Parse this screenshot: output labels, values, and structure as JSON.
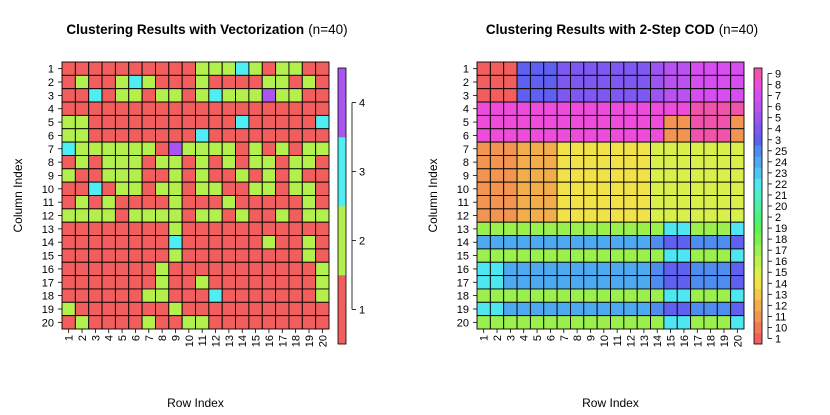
{
  "chart_data": [
    {
      "type": "heatmap",
      "title": "Clustering Results with Vectorization",
      "subtitle": "(n=40)",
      "xlabel": "Row Index",
      "ylabel": "Column Index",
      "x_ticks": [
        "1",
        "2",
        "3",
        "4",
        "5",
        "6",
        "7",
        "8",
        "9",
        "10",
        "11",
        "12",
        "13",
        "14",
        "15",
        "16",
        "17",
        "18",
        "19",
        "20"
      ],
      "y_ticks": [
        "1",
        "2",
        "3",
        "4",
        "5",
        "6",
        "7",
        "8",
        "9",
        "10",
        "11",
        "12",
        "13",
        "14",
        "15",
        "16",
        "17",
        "18",
        "19",
        "20"
      ],
      "legend": {
        "labels": [
          "1",
          "2",
          "3",
          "4"
        ],
        "colors": [
          "#F25D5D",
          "#B3F04E",
          "#4EEEF2",
          "#A855F2"
        ]
      },
      "grid": [
        [
          1,
          1,
          1,
          1,
          1,
          1,
          1,
          1,
          1,
          1,
          2,
          2,
          2,
          3,
          2,
          1,
          2,
          2,
          1,
          1
        ],
        [
          1,
          2,
          1,
          1,
          2,
          3,
          2,
          1,
          1,
          1,
          2,
          1,
          1,
          1,
          1,
          2,
          2,
          1,
          2,
          1
        ],
        [
          1,
          1,
          3,
          1,
          2,
          2,
          1,
          2,
          2,
          1,
          2,
          3,
          2,
          2,
          2,
          4,
          2,
          2,
          1,
          1
        ],
        [
          1,
          1,
          1,
          1,
          1,
          1,
          1,
          1,
          1,
          1,
          1,
          1,
          1,
          1,
          1,
          1,
          1,
          1,
          1,
          1
        ],
        [
          2,
          2,
          1,
          1,
          1,
          1,
          1,
          1,
          1,
          1,
          1,
          1,
          1,
          3,
          1,
          1,
          1,
          1,
          1,
          3
        ],
        [
          2,
          2,
          1,
          1,
          1,
          1,
          1,
          1,
          1,
          1,
          3,
          1,
          1,
          1,
          1,
          1,
          1,
          1,
          1,
          1
        ],
        [
          3,
          2,
          2,
          2,
          2,
          2,
          2,
          1,
          4,
          2,
          2,
          2,
          2,
          1,
          2,
          1,
          2,
          1,
          2,
          2
        ],
        [
          1,
          2,
          1,
          2,
          2,
          2,
          1,
          2,
          2,
          1,
          2,
          1,
          2,
          1,
          2,
          2,
          1,
          2,
          2,
          1
        ],
        [
          2,
          1,
          1,
          2,
          2,
          2,
          1,
          1,
          2,
          1,
          2,
          1,
          1,
          2,
          1,
          2,
          1,
          2,
          1,
          1
        ],
        [
          1,
          1,
          3,
          1,
          2,
          2,
          1,
          2,
          2,
          1,
          2,
          2,
          1,
          1,
          2,
          2,
          1,
          2,
          2,
          1
        ],
        [
          1,
          2,
          1,
          2,
          1,
          1,
          1,
          1,
          2,
          1,
          1,
          1,
          2,
          1,
          1,
          1,
          1,
          1,
          2,
          1
        ],
        [
          2,
          2,
          2,
          2,
          1,
          2,
          2,
          2,
          2,
          1,
          2,
          2,
          1,
          2,
          1,
          1,
          2,
          1,
          2,
          2
        ],
        [
          1,
          1,
          1,
          1,
          1,
          1,
          1,
          1,
          2,
          1,
          1,
          1,
          1,
          1,
          1,
          1,
          1,
          1,
          1,
          1
        ],
        [
          1,
          1,
          1,
          1,
          1,
          1,
          1,
          1,
          3,
          1,
          1,
          1,
          1,
          1,
          1,
          2,
          1,
          1,
          2,
          1
        ],
        [
          1,
          1,
          1,
          1,
          1,
          1,
          1,
          1,
          2,
          1,
          1,
          1,
          1,
          1,
          1,
          1,
          1,
          1,
          2,
          1
        ],
        [
          1,
          1,
          1,
          1,
          1,
          1,
          1,
          2,
          1,
          1,
          1,
          1,
          1,
          1,
          1,
          1,
          1,
          1,
          1,
          2
        ],
        [
          1,
          1,
          1,
          1,
          1,
          1,
          1,
          2,
          1,
          1,
          2,
          1,
          1,
          1,
          1,
          1,
          1,
          1,
          1,
          2
        ],
        [
          1,
          1,
          1,
          1,
          1,
          1,
          2,
          2,
          1,
          1,
          1,
          3,
          1,
          1,
          1,
          1,
          1,
          1,
          1,
          2
        ],
        [
          2,
          1,
          1,
          1,
          1,
          1,
          1,
          1,
          2,
          1,
          1,
          1,
          1,
          1,
          1,
          1,
          1,
          1,
          1,
          1
        ],
        [
          1,
          2,
          1,
          1,
          1,
          1,
          2,
          1,
          1,
          2,
          2,
          1,
          1,
          1,
          1,
          1,
          1,
          1,
          1,
          1
        ]
      ]
    },
    {
      "type": "heatmap",
      "title": "Clustering Results with 2-Step COD",
      "subtitle": "(n=40)",
      "xlabel": "Row Index",
      "ylabel": "Column Index",
      "x_ticks": [
        "1",
        "2",
        "3",
        "4",
        "5",
        "6",
        "7",
        "8",
        "9",
        "10",
        "11",
        "12",
        "13",
        "14",
        "15",
        "16",
        "17",
        "18",
        "19",
        "20"
      ],
      "y_ticks": [
        "1",
        "2",
        "3",
        "4",
        "5",
        "6",
        "7",
        "8",
        "9",
        "10",
        "11",
        "12",
        "13",
        "14",
        "15",
        "16",
        "17",
        "18",
        "19",
        "20"
      ],
      "legend": {
        "labels": [
          "1",
          "10",
          "11",
          "12",
          "13",
          "14",
          "15",
          "16",
          "17",
          "18",
          "19",
          "2",
          "20",
          "21",
          "22",
          "23",
          "24",
          "25",
          "3",
          "4",
          "5",
          "6",
          "7",
          "8",
          "9"
        ],
        "colors": [
          "#F25D5D",
          "#F27A58",
          "#F29452",
          "#F2AE4C",
          "#F2C846",
          "#F2E24A",
          "#D9F04C",
          "#BDF04E",
          "#9CF04E",
          "#7AF04E",
          "#5EF05A",
          "#4EF07C",
          "#4EF0A0",
          "#4EF0C6",
          "#4EE6F0",
          "#4EC8F0",
          "#4EAAF0",
          "#4E8CF0",
          "#6060F0",
          "#7E58F0",
          "#9C55F0",
          "#BA52F0",
          "#D64EEF",
          "#EE4CDB",
          "#F053AA"
        ]
      },
      "grid": [
        [
          1,
          1,
          1,
          19,
          19,
          19,
          20,
          20,
          20,
          20,
          20,
          20,
          20,
          21,
          22,
          22,
          23,
          23,
          23,
          23
        ],
        [
          1,
          1,
          1,
          19,
          19,
          19,
          20,
          20,
          20,
          20,
          20,
          20,
          20,
          21,
          22,
          22,
          23,
          23,
          23,
          23
        ],
        [
          1,
          1,
          1,
          19,
          19,
          19,
          20,
          20,
          20,
          20,
          20,
          20,
          20,
          21,
          22,
          22,
          23,
          23,
          23,
          23
        ],
        [
          24,
          24,
          24,
          24,
          24,
          24,
          24,
          24,
          24,
          24,
          24,
          24,
          24,
          24,
          24,
          24,
          25,
          25,
          25,
          25
        ],
        [
          24,
          24,
          24,
          24,
          24,
          24,
          24,
          24,
          24,
          24,
          24,
          24,
          24,
          24,
          3,
          3,
          25,
          25,
          25,
          3
        ],
        [
          24,
          24,
          24,
          24,
          24,
          24,
          24,
          24,
          24,
          24,
          24,
          24,
          24,
          24,
          3,
          3,
          25,
          25,
          25,
          3
        ],
        [
          3,
          3,
          3,
          4,
          4,
          4,
          6,
          6,
          6,
          6,
          6,
          6,
          6,
          7,
          7,
          7,
          7,
          7,
          7,
          7
        ],
        [
          3,
          3,
          3,
          4,
          4,
          4,
          6,
          6,
          6,
          6,
          6,
          6,
          6,
          7,
          7,
          7,
          7,
          7,
          7,
          7
        ],
        [
          3,
          3,
          3,
          4,
          4,
          4,
          6,
          6,
          6,
          6,
          6,
          6,
          6,
          7,
          7,
          7,
          7,
          7,
          7,
          7
        ],
        [
          3,
          3,
          3,
          4,
          4,
          4,
          6,
          6,
          6,
          6,
          6,
          6,
          6,
          7,
          7,
          7,
          7,
          7,
          7,
          7
        ],
        [
          3,
          3,
          3,
          4,
          4,
          4,
          6,
          6,
          6,
          6,
          6,
          6,
          6,
          7,
          7,
          7,
          7,
          7,
          7,
          7
        ],
        [
          3,
          3,
          3,
          4,
          4,
          4,
          6,
          6,
          6,
          6,
          6,
          6,
          6,
          7,
          7,
          7,
          7,
          7,
          7,
          7
        ],
        [
          9,
          9,
          9,
          9,
          9,
          9,
          9,
          9,
          9,
          9,
          9,
          9,
          9,
          9,
          15,
          15,
          9,
          9,
          9,
          15
        ],
        [
          17,
          17,
          17,
          17,
          17,
          17,
          17,
          17,
          17,
          17,
          17,
          17,
          17,
          18,
          19,
          19,
          18,
          18,
          18,
          19
        ],
        [
          9,
          9,
          9,
          9,
          9,
          9,
          9,
          9,
          9,
          9,
          9,
          9,
          9,
          9,
          15,
          15,
          9,
          9,
          9,
          15
        ],
        [
          15,
          15,
          17,
          17,
          17,
          17,
          17,
          17,
          17,
          17,
          17,
          17,
          17,
          18,
          19,
          19,
          18,
          18,
          18,
          19
        ],
        [
          15,
          15,
          17,
          17,
          17,
          17,
          17,
          17,
          17,
          17,
          17,
          17,
          17,
          18,
          19,
          19,
          18,
          18,
          18,
          19
        ],
        [
          9,
          9,
          9,
          9,
          9,
          9,
          9,
          9,
          9,
          9,
          9,
          9,
          9,
          9,
          15,
          15,
          9,
          9,
          9,
          15
        ],
        [
          15,
          15,
          17,
          17,
          17,
          17,
          17,
          17,
          17,
          17,
          17,
          17,
          17,
          18,
          19,
          19,
          18,
          18,
          18,
          19
        ],
        [
          9,
          9,
          9,
          9,
          9,
          9,
          9,
          9,
          9,
          9,
          9,
          9,
          9,
          9,
          15,
          15,
          9,
          9,
          9,
          15
        ]
      ]
    }
  ]
}
